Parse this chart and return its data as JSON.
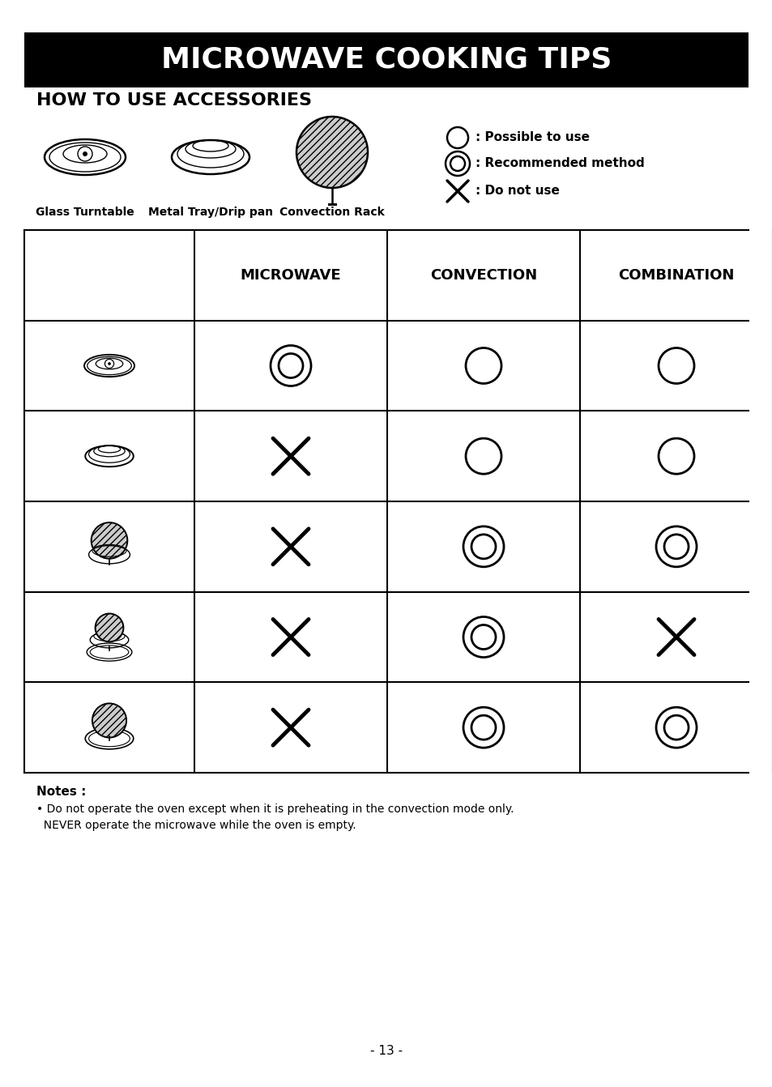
{
  "title": "MICROWAVE COOKING TIPS",
  "section_title": "HOW TO USE ACCESSORIES",
  "col_headers": [
    "MICROWAVE",
    "CONVECTION",
    "COMBINATION"
  ],
  "table_data": [
    [
      "recommended",
      "possible",
      "possible"
    ],
    [
      "X",
      "possible",
      "possible"
    ],
    [
      "X",
      "recommended",
      "recommended"
    ],
    [
      "X",
      "recommended",
      "X"
    ],
    [
      "X",
      "recommended",
      "recommended"
    ]
  ],
  "notes_title": "Notes :",
  "notes_lines": [
    "• Do not operate the oven except when it is preheating in the convection mode only.",
    "  NEVER operate the microwave while the oven is empty."
  ],
  "page_number": "- 13 -",
  "bg_color": "#ffffff",
  "title_bg": "#000000",
  "title_fg": "#ffffff"
}
